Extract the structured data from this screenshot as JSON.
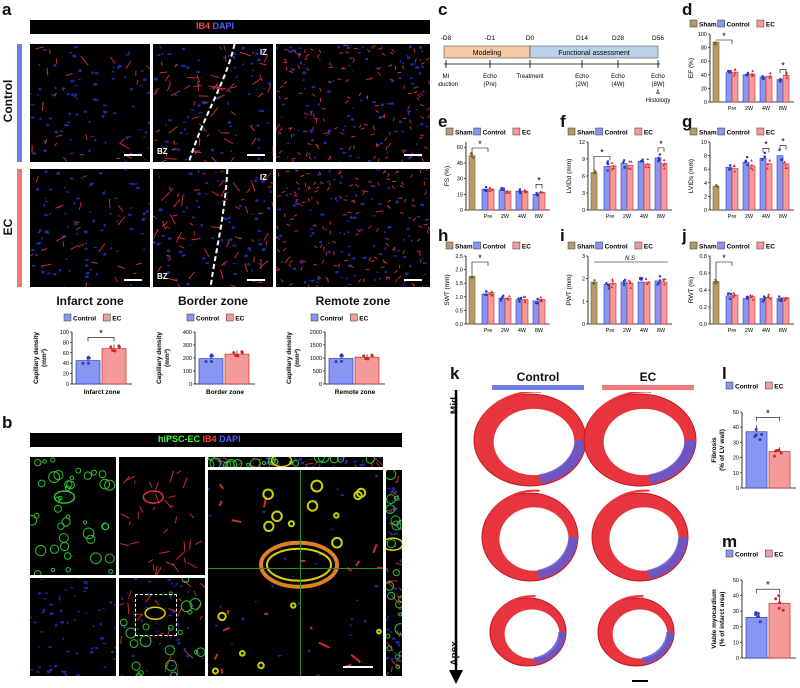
{
  "panels": {
    "a": "a",
    "b": "b",
    "c": "c",
    "d": "d",
    "e": "e",
    "f": "f",
    "g": "g",
    "h": "h",
    "i": "i",
    "j": "j",
    "k": "k",
    "l": "l",
    "m": "m"
  },
  "panel_a": {
    "stain_ib4": "IB4",
    "stain_dapi": "DAPI",
    "rows": [
      "Control",
      "EC"
    ],
    "zones": [
      "Infarct zone",
      "Border zone",
      "Remote zone"
    ],
    "iz": "IZ",
    "bz": "BZ",
    "colors": {
      "control": "#6f7fe6",
      "ec": "#f07a7a"
    }
  },
  "panel_b": {
    "stain_hipsc": "hiPSC-EC",
    "stain_ib4": "IB4",
    "stain_dapi": "DAPI"
  },
  "timeline": {
    "days": [
      "-D8",
      "-D1",
      "D0",
      "D14",
      "D28",
      "D56"
    ],
    "phase1": "Modeling",
    "phase2": "Functional assessment",
    "events": [
      "MI",
      "induction",
      "Echo",
      "(Pre)",
      "Treatment",
      "Echo",
      "(2W)",
      "Echo",
      "(4W)",
      "Echo",
      "(8W)",
      "&",
      "Histology"
    ]
  },
  "legend": {
    "sham": "Sham",
    "control": "Control",
    "ec": "EC"
  },
  "chart_data": [
    {
      "id": "a1",
      "type": "bar",
      "categories": [
        "Control",
        "EC"
      ],
      "values": [
        45,
        68
      ],
      "ylabel": "Capillary density (mm²)",
      "xlabel": "Infarct zone",
      "ylim": [
        0,
        100
      ],
      "yticks": [
        "0",
        "20",
        "40",
        "60",
        "80",
        "100"
      ],
      "sig": "*"
    },
    {
      "id": "a2",
      "type": "bar",
      "categories": [
        "Control",
        "EC"
      ],
      "values": [
        195,
        230
      ],
      "ylabel": "Capillary density (mm²)",
      "xlabel": "Border zone",
      "ylim": [
        0,
        400
      ],
      "yticks": [
        "0",
        "100",
        "200",
        "300",
        "400"
      ]
    },
    {
      "id": "a3",
      "type": "bar",
      "categories": [
        "Control",
        "EC"
      ],
      "values": [
        980,
        1030
      ],
      "ylabel": "Capillary density (mm²)",
      "xlabel": "Remote zone",
      "ylim": [
        0,
        2000
      ],
      "yticks": [
        "0",
        "500",
        "1000",
        "1500",
        "2000"
      ]
    },
    {
      "id": "d",
      "type": "bar",
      "x": [
        "Pre",
        "2W",
        "4W",
        "8W"
      ],
      "ylabel": "EF (%)",
      "ylim": [
        0,
        100
      ],
      "yticks": [
        "0",
        "20",
        "40",
        "60",
        "80",
        "100"
      ],
      "sham": 88,
      "series": [
        {
          "name": "Control",
          "values": [
            43,
            40,
            37,
            33
          ]
        },
        {
          "name": "EC",
          "values": [
            44,
            41,
            38,
            39
          ]
        }
      ],
      "sig": [
        "Pre",
        "8W"
      ]
    },
    {
      "id": "e",
      "type": "bar",
      "x": [
        "Pre",
        "2W",
        "4W",
        "8W"
      ],
      "ylabel": "FS (%)",
      "ylim": [
        0,
        65
      ],
      "yticks": [
        "0",
        "15",
        "30",
        "45",
        "60"
      ],
      "sham": 52,
      "series": [
        {
          "name": "Control",
          "values": [
            20,
            19,
            18,
            15
          ]
        },
        {
          "name": "EC",
          "values": [
            20,
            18,
            18,
            17
          ]
        }
      ],
      "sig": [
        "Pre",
        "8W"
      ]
    },
    {
      "id": "f",
      "type": "bar",
      "x": [
        "Pre",
        "2W",
        "4W",
        "8W"
      ],
      "ylabel": "LVIDd (mm)",
      "ylim": [
        0,
        12
      ],
      "yticks": [
        "0",
        "3",
        "6",
        "9",
        "12"
      ],
      "sham": 6.6,
      "series": [
        {
          "name": "Control",
          "values": [
            7.7,
            8.2,
            8.6,
            9.2
          ]
        },
        {
          "name": "EC",
          "values": [
            7.8,
            7.9,
            8.1,
            8.2
          ]
        }
      ],
      "sig": [
        "Pre",
        "8W"
      ]
    },
    {
      "id": "g",
      "type": "bar",
      "x": [
        "Pre",
        "2W",
        "4W",
        "8W"
      ],
      "ylabel": "LVIDs (mm)",
      "ylim": [
        0,
        10
      ],
      "yticks": [
        "0",
        "2",
        "4",
        "6",
        "8",
        "10"
      ],
      "sham": 3.5,
      "series": [
        {
          "name": "Control",
          "values": [
            6.3,
            7.0,
            7.6,
            8.0
          ]
        },
        {
          "name": "EC",
          "values": [
            6.1,
            6.5,
            6.8,
            6.8
          ]
        }
      ],
      "sig": [
        "4W",
        "8W"
      ]
    },
    {
      "id": "h",
      "type": "bar",
      "x": [
        "Pre",
        "2W",
        "4W",
        "8W"
      ],
      "ylabel": "SWT (mm)",
      "ylim": [
        0,
        2.5
      ],
      "yticks": [
        "0.0",
        "0.5",
        "1.0",
        "1.5",
        "2.0",
        "2.5"
      ],
      "sham": 1.75,
      "series": [
        {
          "name": "Control",
          "values": [
            1.1,
            0.95,
            0.9,
            0.85
          ]
        },
        {
          "name": "EC",
          "values": [
            1.15,
            0.95,
            0.9,
            0.9
          ]
        }
      ],
      "sig": [
        "Pre"
      ]
    },
    {
      "id": "i",
      "type": "bar",
      "x": [
        "Pre",
        "2W",
        "4W",
        "8W"
      ],
      "ylabel": "PWT (mm)",
      "ylim": [
        0,
        3
      ],
      "yticks": [
        "0",
        "1",
        "2",
        "3"
      ],
      "sham": 1.85,
      "series": [
        {
          "name": "Control",
          "values": [
            1.75,
            1.85,
            1.85,
            1.9
          ]
        },
        {
          "name": "EC",
          "values": [
            1.8,
            1.8,
            1.85,
            1.85
          ]
        }
      ],
      "ns": "N.S"
    },
    {
      "id": "j",
      "type": "bar",
      "x": [
        "Pre",
        "2W",
        "4W",
        "8W"
      ],
      "ylabel": "RWT (%)",
      "ylim": [
        0,
        0.8
      ],
      "yticks": [
        "0.0",
        "0.2",
        "0.4",
        "0.6",
        "0.8"
      ],
      "sham": 0.5,
      "series": [
        {
          "name": "Control",
          "values": [
            0.33,
            0.3,
            0.3,
            0.3
          ]
        },
        {
          "name": "EC",
          "values": [
            0.34,
            0.32,
            0.31,
            0.31
          ]
        }
      ],
      "sig": [
        "Pre"
      ]
    },
    {
      "id": "l",
      "type": "bar",
      "categories": [
        "Control",
        "EC"
      ],
      "values": [
        37,
        24
      ],
      "ylabel": "Fibrosis (% of LV wall)",
      "ylim": [
        0,
        50
      ],
      "yticks": [
        "0",
        "10",
        "20",
        "30",
        "40",
        "50"
      ],
      "sig": "*"
    },
    {
      "id": "m",
      "type": "bar",
      "categories": [
        "Control",
        "EC"
      ],
      "values": [
        26,
        35
      ],
      "ylabel": "Viable myocardium (% of infarct area)",
      "ylim": [
        0,
        50
      ],
      "yticks": [
        "0",
        "10",
        "20",
        "30",
        "40",
        "50"
      ],
      "sig": "*"
    }
  ],
  "panel_k": {
    "groups": [
      "Control",
      "EC"
    ],
    "mid": "Mid",
    "apex": "Apex"
  }
}
